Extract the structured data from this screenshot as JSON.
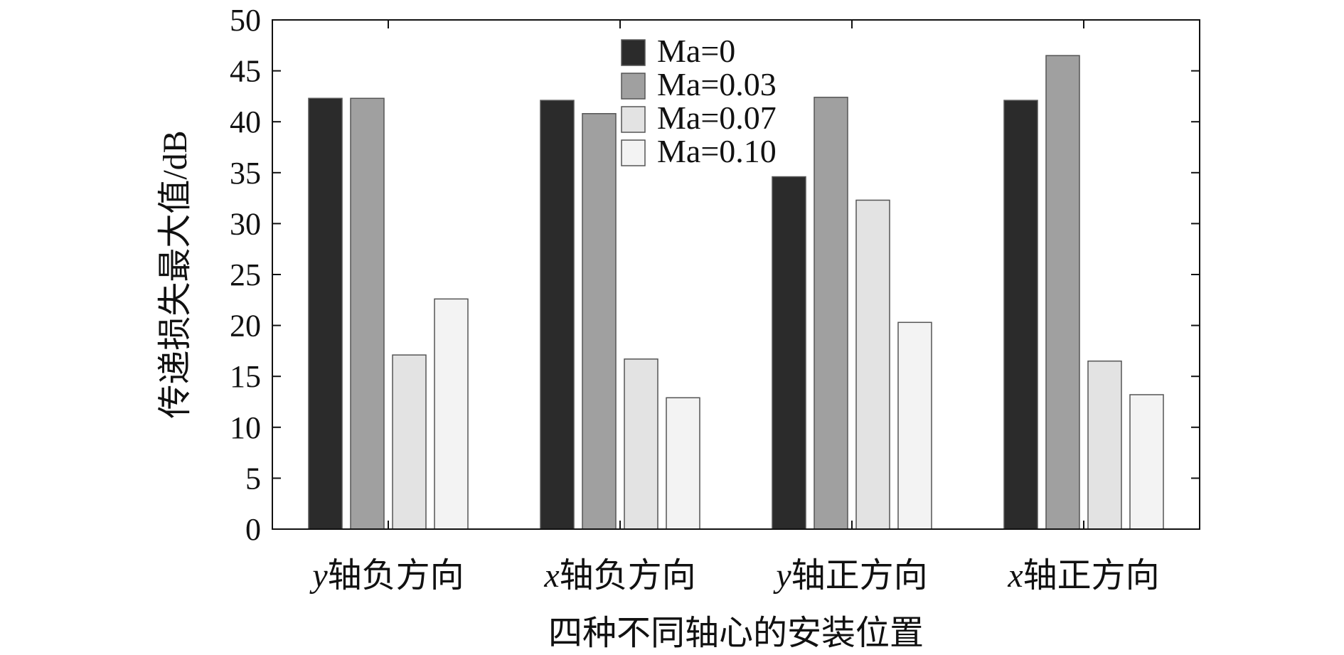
{
  "chart_data": {
    "type": "bar",
    "categories": [
      "y轴负方向",
      "x轴负方向",
      "y轴正方向",
      "x轴正方向"
    ],
    "series": [
      {
        "name": "Ma=0",
        "color": "#2b2b2b",
        "values": [
          42.3,
          42.1,
          34.6,
          42.1
        ]
      },
      {
        "name": "Ma=0.03",
        "color": "#a0a0a0",
        "values": [
          42.3,
          40.8,
          42.4,
          46.5
        ]
      },
      {
        "name": "Ma=0.07",
        "color": "#e3e3e3",
        "values": [
          17.1,
          16.7,
          32.3,
          16.5
        ]
      },
      {
        "name": "Ma=0.10",
        "color": "#f3f3f3",
        "values": [
          22.6,
          12.9,
          20.3,
          13.2
        ]
      }
    ],
    "xlabel": "四种不同轴心的安装位置",
    "ylabel": "传递损失最大值/dB",
    "ylim": [
      0,
      50
    ],
    "yticks": [
      0,
      5,
      10,
      15,
      20,
      25,
      30,
      35,
      40,
      45,
      50
    ],
    "grid": false,
    "legend_position": "top-center"
  }
}
